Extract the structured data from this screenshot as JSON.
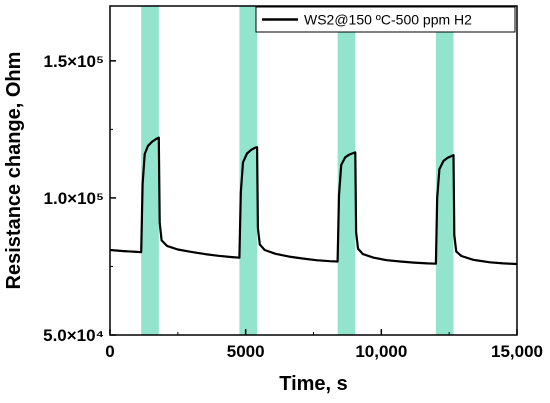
{
  "chart_data": {
    "type": "line",
    "title": "",
    "xlabel": "Time, s",
    "ylabel": "Resistance change, Ohm",
    "xlim": [
      0,
      15000
    ],
    "ylim": [
      50000,
      170000
    ],
    "x_ticks": [
      0,
      5000,
      10000,
      15000
    ],
    "x_tick_labels": [
      "0",
      "5000",
      "10,000",
      "15,000"
    ],
    "y_ticks": [
      50000,
      100000,
      150000
    ],
    "y_tick_labels": [
      "5.0×10⁴",
      "1.0×10⁵",
      "1.5×10⁵"
    ],
    "grid": false,
    "legend_position": "top-right",
    "gas_exposure_windows": [
      [
        1150,
        1800
      ],
      [
        4770,
        5420
      ],
      [
        8390,
        9040
      ],
      [
        12010,
        12660
      ]
    ],
    "gas_window_color": "#7fdfc4",
    "series": [
      {
        "name": "WS2@150 ºC-500 ppm H2",
        "color": "#000000",
        "x": [
          0,
          500,
          1000,
          1150,
          1200,
          1280,
          1400,
          1550,
          1700,
          1800,
          1830,
          1900,
          2100,
          2500,
          3000,
          3500,
          4000,
          4500,
          4770,
          4820,
          4900,
          5050,
          5200,
          5350,
          5420,
          5450,
          5520,
          5700,
          6100,
          6600,
          7100,
          7600,
          8100,
          8390,
          8440,
          8520,
          8670,
          8820,
          8970,
          9040,
          9070,
          9140,
          9320,
          9720,
          10200,
          10700,
          11200,
          11700,
          12010,
          12060,
          12140,
          12290,
          12440,
          12590,
          12660,
          12690,
          12760,
          12950,
          13400,
          14000,
          14500,
          15000
        ],
        "y": [
          81000,
          80600,
          80300,
          80200,
          105000,
          116000,
          119000,
          120500,
          121500,
          122000,
          91000,
          84500,
          82500,
          81200,
          80300,
          79500,
          78900,
          78400,
          78200,
          102000,
          113000,
          116200,
          117500,
          118300,
          118500,
          89000,
          83000,
          81000,
          79600,
          78600,
          77900,
          77300,
          76900,
          76800,
          101000,
          112000,
          114800,
          115800,
          116400,
          116600,
          87500,
          81500,
          79500,
          78200,
          77300,
          76800,
          76400,
          76100,
          76000,
          100000,
          110500,
          113500,
          114600,
          115300,
          115600,
          86500,
          80500,
          78800,
          77400,
          76500,
          76100,
          75900
        ]
      }
    ]
  }
}
